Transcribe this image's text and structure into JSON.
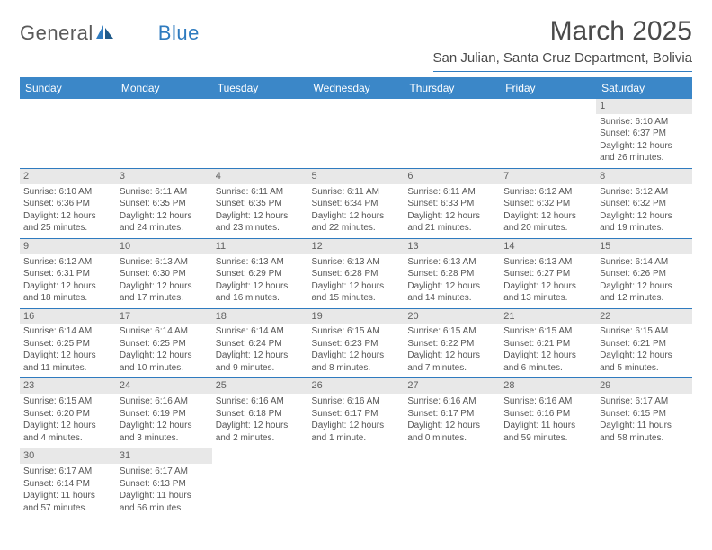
{
  "logo": {
    "text1": "General",
    "text2": "Blue"
  },
  "title": "March 2025",
  "location": "San Julian, Santa Cruz Department, Bolivia",
  "colors": {
    "header_bg": "#3b87c8",
    "header_text": "#ffffff",
    "border": "#2f7bbf",
    "logo_gray": "#5a5a5a",
    "logo_blue": "#2f7bbf",
    "daynum_bg": "#e8e8e8",
    "body_text": "#555555"
  },
  "weekdays": [
    "Sunday",
    "Monday",
    "Tuesday",
    "Wednesday",
    "Thursday",
    "Friday",
    "Saturday"
  ],
  "weeks": [
    [
      null,
      null,
      null,
      null,
      null,
      null,
      {
        "n": "1",
        "sr": "Sunrise: 6:10 AM",
        "ss": "Sunset: 6:37 PM",
        "d1": "Daylight: 12 hours",
        "d2": "and 26 minutes."
      }
    ],
    [
      {
        "n": "2",
        "sr": "Sunrise: 6:10 AM",
        "ss": "Sunset: 6:36 PM",
        "d1": "Daylight: 12 hours",
        "d2": "and 25 minutes."
      },
      {
        "n": "3",
        "sr": "Sunrise: 6:11 AM",
        "ss": "Sunset: 6:35 PM",
        "d1": "Daylight: 12 hours",
        "d2": "and 24 minutes."
      },
      {
        "n": "4",
        "sr": "Sunrise: 6:11 AM",
        "ss": "Sunset: 6:35 PM",
        "d1": "Daylight: 12 hours",
        "d2": "and 23 minutes."
      },
      {
        "n": "5",
        "sr": "Sunrise: 6:11 AM",
        "ss": "Sunset: 6:34 PM",
        "d1": "Daylight: 12 hours",
        "d2": "and 22 minutes."
      },
      {
        "n": "6",
        "sr": "Sunrise: 6:11 AM",
        "ss": "Sunset: 6:33 PM",
        "d1": "Daylight: 12 hours",
        "d2": "and 21 minutes."
      },
      {
        "n": "7",
        "sr": "Sunrise: 6:12 AM",
        "ss": "Sunset: 6:32 PM",
        "d1": "Daylight: 12 hours",
        "d2": "and 20 minutes."
      },
      {
        "n": "8",
        "sr": "Sunrise: 6:12 AM",
        "ss": "Sunset: 6:32 PM",
        "d1": "Daylight: 12 hours",
        "d2": "and 19 minutes."
      }
    ],
    [
      {
        "n": "9",
        "sr": "Sunrise: 6:12 AM",
        "ss": "Sunset: 6:31 PM",
        "d1": "Daylight: 12 hours",
        "d2": "and 18 minutes."
      },
      {
        "n": "10",
        "sr": "Sunrise: 6:13 AM",
        "ss": "Sunset: 6:30 PM",
        "d1": "Daylight: 12 hours",
        "d2": "and 17 minutes."
      },
      {
        "n": "11",
        "sr": "Sunrise: 6:13 AM",
        "ss": "Sunset: 6:29 PM",
        "d1": "Daylight: 12 hours",
        "d2": "and 16 minutes."
      },
      {
        "n": "12",
        "sr": "Sunrise: 6:13 AM",
        "ss": "Sunset: 6:28 PM",
        "d1": "Daylight: 12 hours",
        "d2": "and 15 minutes."
      },
      {
        "n": "13",
        "sr": "Sunrise: 6:13 AM",
        "ss": "Sunset: 6:28 PM",
        "d1": "Daylight: 12 hours",
        "d2": "and 14 minutes."
      },
      {
        "n": "14",
        "sr": "Sunrise: 6:13 AM",
        "ss": "Sunset: 6:27 PM",
        "d1": "Daylight: 12 hours",
        "d2": "and 13 minutes."
      },
      {
        "n": "15",
        "sr": "Sunrise: 6:14 AM",
        "ss": "Sunset: 6:26 PM",
        "d1": "Daylight: 12 hours",
        "d2": "and 12 minutes."
      }
    ],
    [
      {
        "n": "16",
        "sr": "Sunrise: 6:14 AM",
        "ss": "Sunset: 6:25 PM",
        "d1": "Daylight: 12 hours",
        "d2": "and 11 minutes."
      },
      {
        "n": "17",
        "sr": "Sunrise: 6:14 AM",
        "ss": "Sunset: 6:25 PM",
        "d1": "Daylight: 12 hours",
        "d2": "and 10 minutes."
      },
      {
        "n": "18",
        "sr": "Sunrise: 6:14 AM",
        "ss": "Sunset: 6:24 PM",
        "d1": "Daylight: 12 hours",
        "d2": "and 9 minutes."
      },
      {
        "n": "19",
        "sr": "Sunrise: 6:15 AM",
        "ss": "Sunset: 6:23 PM",
        "d1": "Daylight: 12 hours",
        "d2": "and 8 minutes."
      },
      {
        "n": "20",
        "sr": "Sunrise: 6:15 AM",
        "ss": "Sunset: 6:22 PM",
        "d1": "Daylight: 12 hours",
        "d2": "and 7 minutes."
      },
      {
        "n": "21",
        "sr": "Sunrise: 6:15 AM",
        "ss": "Sunset: 6:21 PM",
        "d1": "Daylight: 12 hours",
        "d2": "and 6 minutes."
      },
      {
        "n": "22",
        "sr": "Sunrise: 6:15 AM",
        "ss": "Sunset: 6:21 PM",
        "d1": "Daylight: 12 hours",
        "d2": "and 5 minutes."
      }
    ],
    [
      {
        "n": "23",
        "sr": "Sunrise: 6:15 AM",
        "ss": "Sunset: 6:20 PM",
        "d1": "Daylight: 12 hours",
        "d2": "and 4 minutes."
      },
      {
        "n": "24",
        "sr": "Sunrise: 6:16 AM",
        "ss": "Sunset: 6:19 PM",
        "d1": "Daylight: 12 hours",
        "d2": "and 3 minutes."
      },
      {
        "n": "25",
        "sr": "Sunrise: 6:16 AM",
        "ss": "Sunset: 6:18 PM",
        "d1": "Daylight: 12 hours",
        "d2": "and 2 minutes."
      },
      {
        "n": "26",
        "sr": "Sunrise: 6:16 AM",
        "ss": "Sunset: 6:17 PM",
        "d1": "Daylight: 12 hours",
        "d2": "and 1 minute."
      },
      {
        "n": "27",
        "sr": "Sunrise: 6:16 AM",
        "ss": "Sunset: 6:17 PM",
        "d1": "Daylight: 12 hours",
        "d2": "and 0 minutes."
      },
      {
        "n": "28",
        "sr": "Sunrise: 6:16 AM",
        "ss": "Sunset: 6:16 PM",
        "d1": "Daylight: 11 hours",
        "d2": "and 59 minutes."
      },
      {
        "n": "29",
        "sr": "Sunrise: 6:17 AM",
        "ss": "Sunset: 6:15 PM",
        "d1": "Daylight: 11 hours",
        "d2": "and 58 minutes."
      }
    ],
    [
      {
        "n": "30",
        "sr": "Sunrise: 6:17 AM",
        "ss": "Sunset: 6:14 PM",
        "d1": "Daylight: 11 hours",
        "d2": "and 57 minutes."
      },
      {
        "n": "31",
        "sr": "Sunrise: 6:17 AM",
        "ss": "Sunset: 6:13 PM",
        "d1": "Daylight: 11 hours",
        "d2": "and 56 minutes."
      },
      null,
      null,
      null,
      null,
      null
    ]
  ]
}
